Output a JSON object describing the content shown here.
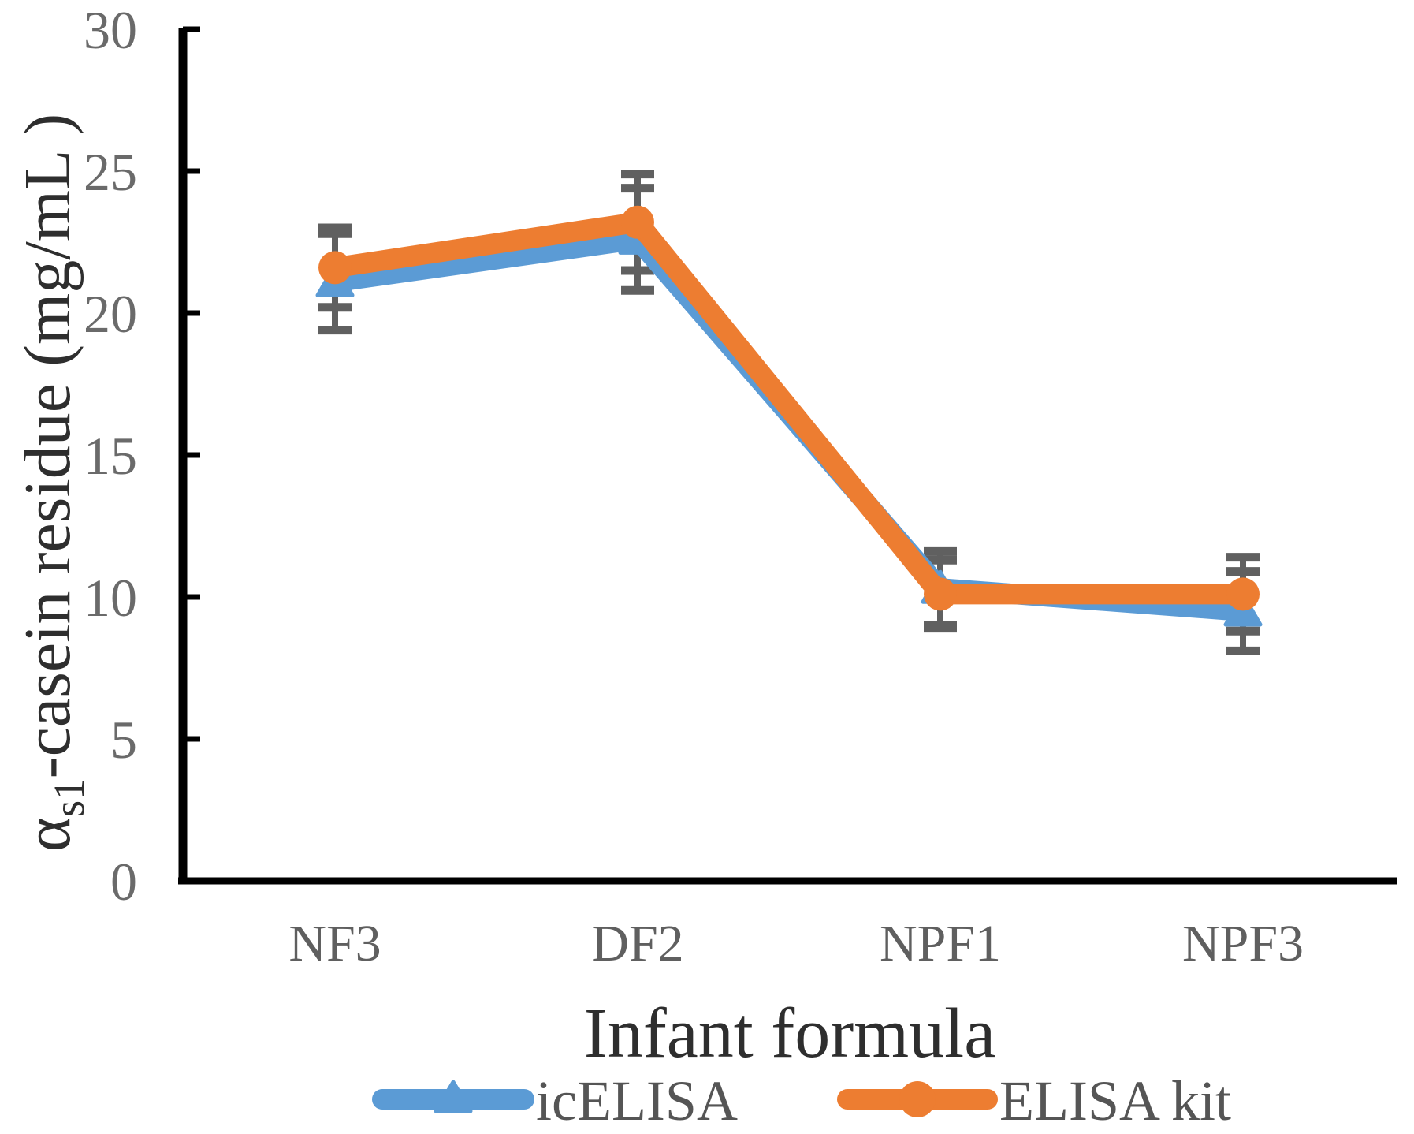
{
  "chart_data": {
    "type": "line",
    "title": "",
    "xlabel": "Infant formula",
    "ylabel": {
      "prefix": "α",
      "subscript": "s1",
      "suffix": "-casein residue (mg/mL )"
    },
    "categories": [
      "NF3",
      "DF2",
      "NPF1",
      "NPF3"
    ],
    "ylim": [
      0,
      30
    ],
    "ytick_step": 5,
    "yticks": [
      0,
      5,
      10,
      15,
      20,
      25,
      30
    ],
    "grid": false,
    "legend_position": "bottom",
    "axis_color": "#000000",
    "error_bar_color": "#606060",
    "series": [
      {
        "name": "icELISA",
        "color": "#5B9BD5",
        "marker": "triangle",
        "values": [
          21.1,
          22.6,
          10.3,
          9.5
        ],
        "errors": [
          1.7,
          1.8,
          1.3,
          1.4
        ]
      },
      {
        "name": "ELISA kit",
        "color": "#ED7D31",
        "marker": "circle",
        "values": [
          21.6,
          23.2,
          10.1,
          10.1
        ],
        "errors": [
          1.4,
          1.7,
          1.2,
          1.3
        ]
      }
    ]
  }
}
